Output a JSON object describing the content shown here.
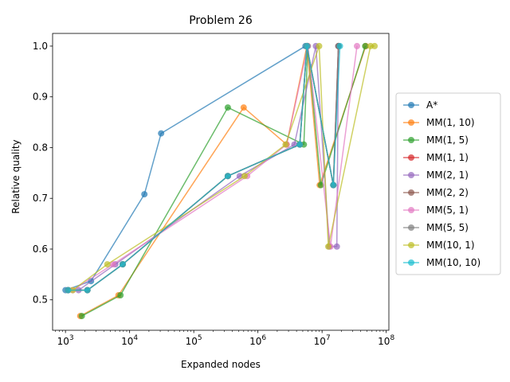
{
  "chart_data": {
    "type": "line",
    "title": "Problem 26",
    "xlabel": "Expanded nodes",
    "ylabel": "Relative quality",
    "x_scale": "log",
    "xlim": [
      630,
      110000000
    ],
    "ylim": [
      0.44,
      1.025
    ],
    "x_ticks": [
      1000,
      10000,
      100000,
      1000000,
      10000000,
      100000000
    ],
    "x_tick_labels": [
      {
        "base": "10",
        "exp": "3"
      },
      {
        "base": "10",
        "exp": "4"
      },
      {
        "base": "10",
        "exp": "5"
      },
      {
        "base": "10",
        "exp": "6"
      },
      {
        "base": "10",
        "exp": "7"
      },
      {
        "base": "10",
        "exp": "8"
      }
    ],
    "y_ticks": [
      0.5,
      0.6,
      0.7,
      0.8,
      0.9,
      1.0
    ],
    "y_tick_labels": [
      "0.5",
      "0.6",
      "0.7",
      "0.8",
      "0.9",
      "1.0"
    ],
    "grid": false,
    "legend_position": "right outside",
    "marker": "circle",
    "series": [
      {
        "name": "A*",
        "color": "#1f77b4",
        "points": [
          [
            1000,
            0.519
          ],
          [
            2500,
            0.537
          ],
          [
            17000,
            0.708
          ],
          [
            31000,
            0.828
          ],
          [
            5500000,
            1.0
          ]
        ]
      },
      {
        "name": "MM(1, 10)",
        "color": "#ff7f0e",
        "points": [
          [
            1700,
            0.468
          ],
          [
            6700,
            0.509
          ],
          [
            600000,
            0.879
          ],
          [
            2800000,
            0.806
          ],
          [
            5800000,
            1.0
          ],
          [
            9200000,
            0.726
          ],
          [
            48000000,
            1.0
          ]
        ]
      },
      {
        "name": "MM(1, 5)",
        "color": "#2ca02c",
        "points": [
          [
            1800,
            0.468
          ],
          [
            7200,
            0.509
          ],
          [
            340000,
            0.879
          ],
          [
            5200000,
            0.806
          ],
          [
            6000000,
            1.0
          ],
          [
            9600000,
            0.726
          ],
          [
            47000000,
            1.0
          ]
        ]
      },
      {
        "name": "MM(1, 1)",
        "color": "#d62728",
        "points": [
          [
            1100,
            0.519
          ],
          [
            2200,
            0.519
          ],
          [
            7800,
            0.57
          ],
          [
            340000,
            0.744
          ],
          [
            4500000,
            0.806
          ],
          [
            5800000,
            1.0
          ],
          [
            15000000,
            0.726
          ],
          [
            18000000,
            1.0
          ]
        ]
      },
      {
        "name": "MM(2, 1)",
        "color": "#9467bd",
        "points": [
          [
            1600,
            0.519
          ],
          [
            6000,
            0.57
          ],
          [
            520000,
            0.744
          ],
          [
            3700000,
            0.806
          ],
          [
            8000000,
            1.0
          ],
          [
            13000000,
            0.605
          ],
          [
            17000000,
            0.605
          ],
          [
            18000000,
            1.0
          ]
        ]
      },
      {
        "name": "MM(2, 2)",
        "color": "#8c564b",
        "points": [
          [
            1100,
            0.519
          ],
          [
            2200,
            0.519
          ],
          [
            7800,
            0.57
          ],
          [
            340000,
            0.744
          ],
          [
            4500000,
            0.806
          ],
          [
            5800000,
            1.0
          ],
          [
            15000000,
            0.726
          ],
          [
            18000000,
            1.0
          ]
        ]
      },
      {
        "name": "MM(5, 1)",
        "color": "#e377c2",
        "points": [
          [
            1300,
            0.519
          ],
          [
            5500,
            0.57
          ],
          [
            680000,
            0.744
          ],
          [
            2800000,
            0.806
          ],
          [
            6000000,
            1.0
          ],
          [
            13500000,
            0.605
          ],
          [
            35000000,
            1.0
          ]
        ]
      },
      {
        "name": "MM(5, 5)",
        "color": "#7f7f7f",
        "points": [
          [
            1100,
            0.519
          ],
          [
            2200,
            0.519
          ],
          [
            7800,
            0.57
          ],
          [
            340000,
            0.744
          ],
          [
            4500000,
            0.806
          ],
          [
            5800000,
            1.0
          ],
          [
            15000000,
            0.726
          ],
          [
            18000000,
            1.0
          ]
        ]
      },
      {
        "name": "MM(10, 1)",
        "color": "#bcbd22",
        "points": [
          [
            1300,
            0.519
          ],
          [
            4500,
            0.57
          ],
          [
            620000,
            0.744
          ],
          [
            2700000,
            0.806
          ],
          [
            9000000,
            1.0
          ],
          [
            12500000,
            0.605
          ],
          [
            57000000,
            1.0
          ],
          [
            66000000,
            1.0
          ]
        ]
      },
      {
        "name": "MM(10, 10)",
        "color": "#17becf",
        "points": [
          [
            1100,
            0.519
          ],
          [
            2200,
            0.519
          ],
          [
            7800,
            0.57
          ],
          [
            340000,
            0.744
          ],
          [
            4500000,
            0.806
          ],
          [
            5800000,
            1.0
          ],
          [
            15000000,
            0.726
          ],
          [
            19000000,
            1.0
          ]
        ]
      }
    ]
  }
}
